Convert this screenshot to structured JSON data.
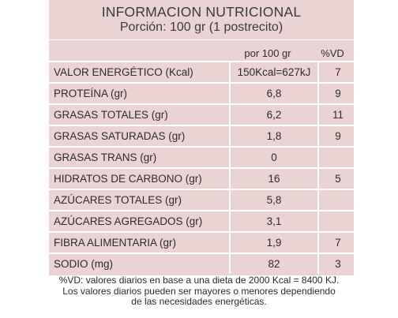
{
  "title": "INFORMACION NUTRICIONAL",
  "portion": "Porción: 100 gr (1 postrecito)",
  "columns": {
    "per_100": "por 100 gr",
    "vd": "%VD"
  },
  "rows": [
    {
      "name": "VALOR ENERGÉTICO  (Kcal)",
      "value": "150Kcal=627kJ",
      "vd": "7"
    },
    {
      "name": "PROTEÍNA (gr)",
      "value": "6,8",
      "vd": "9"
    },
    {
      "name": "GRASAS TOTALES (gr)",
      "value": "6,2",
      "vd": "11"
    },
    {
      "name": "GRASAS SATURADAS (gr)",
      "value": "1,8",
      "vd": "9"
    },
    {
      "name": "GRASAS TRANS (gr)",
      "value": "0",
      "vd": ""
    },
    {
      "name": "HIDRATOS DE CARBONO (gr)",
      "value": "16",
      "vd": "5"
    },
    {
      "name": "AZÚCARES TOTALES (gr)",
      "value": "5,8",
      "vd": ""
    },
    {
      "name": "AZÚCARES AGREGADOS (gr)",
      "value": "3,1",
      "vd": ""
    },
    {
      "name": "FIBRA ALIMENTARIA (gr)",
      "value": "1,9",
      "vd": "7"
    },
    {
      "name": "SODIO (mg)",
      "value": "82",
      "vd": "3"
    }
  ],
  "footnote": {
    "line1": "%VD:  valores diarios en base a una dieta de 2000 Kcal = 8400 KJ.",
    "line2": "Los valores diarios pueden ser mayores o menores dependiendo",
    "line3": "de las necesidades energéticas."
  },
  "colors": {
    "panel_background": "#ecd3d3",
    "divider": "#ffffff",
    "text": "#2b2b2b"
  }
}
